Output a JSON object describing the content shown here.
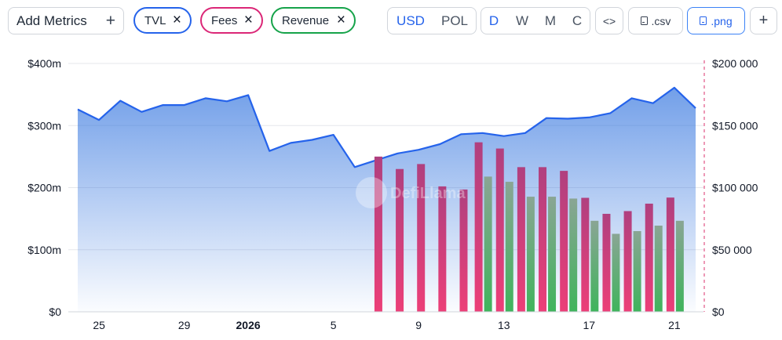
{
  "toolbar": {
    "add_metrics_label": "Add Metrics",
    "add_icon": "+",
    "chips": [
      {
        "label": "TVL",
        "color": "#2563eb"
      },
      {
        "label": "Fees",
        "color": "#db2777"
      },
      {
        "label": "Revenue",
        "color": "#16a34a"
      }
    ],
    "currency": [
      "USD",
      "POL"
    ],
    "currency_selected": "USD",
    "intervals": [
      "D",
      "W",
      "M",
      "C"
    ],
    "interval_selected": "D",
    "embed_icon": "<>",
    "csv_label": ".csv",
    "png_label": ".png",
    "plus_label": "+"
  },
  "watermark": "DefiLlama",
  "chart_data": {
    "type": "area+bar",
    "x_tick_labels": [
      "25",
      "29",
      "2026",
      "5",
      "9",
      "13",
      "17",
      "21"
    ],
    "days": [
      "Dec 24",
      "Dec 25",
      "Dec 26",
      "Dec 27",
      "Dec 28",
      "Dec 29",
      "Dec 30",
      "Dec 31",
      "Jan 1",
      "Jan 2",
      "Jan 3",
      "Jan 4",
      "Jan 5",
      "Jan 6",
      "Jan 7",
      "Jan 8",
      "Jan 9",
      "Jan 10",
      "Jan 11",
      "Jan 12",
      "Jan 13",
      "Jan 14",
      "Jan 15",
      "Jan 16",
      "Jan 17",
      "Jan 18",
      "Jan 19",
      "Jan 20",
      "Jan 21",
      "Jan 22"
    ],
    "left_axis": {
      "ticks": [
        "$0",
        "$100m",
        "$200m",
        "$300m",
        "$400m"
      ],
      "ylim": [
        0,
        400000000
      ]
    },
    "right_axis": {
      "ticks": [
        "$0",
        "$50 000",
        "$100 000",
        "$150 000",
        "$200 000"
      ],
      "ylim": [
        0,
        200000
      ]
    },
    "series": [
      {
        "name": "TVL",
        "axis": "left",
        "kind": "area",
        "color": "#2563eb",
        "values": [
          326000000,
          309000000,
          340000000,
          322000000,
          333000000,
          333000000,
          344000000,
          339000000,
          349000000,
          259000000,
          272000000,
          277000000,
          285000000,
          233000000,
          244000000,
          255000000,
          261000000,
          270000000,
          286000000,
          288000000,
          283000000,
          288000000,
          312000000,
          311000000,
          313000000,
          320000000,
          344000000,
          336000000,
          361000000,
          328000000
        ]
      },
      {
        "name": "Fees",
        "axis": "right",
        "kind": "bar",
        "color": "#db2777",
        "values": [
          null,
          null,
          null,
          null,
          null,
          null,
          null,
          null,
          null,
          null,
          null,
          null,
          null,
          null,
          125000,
          115000,
          119000,
          101000,
          98500,
          136500,
          131500,
          116500,
          116500,
          113500,
          91800,
          78900,
          81100,
          87100,
          92000,
          null
        ]
      },
      {
        "name": "Revenue",
        "axis": "right",
        "kind": "bar",
        "color": "#16a34a",
        "values": [
          null,
          null,
          null,
          null,
          null,
          null,
          null,
          null,
          null,
          null,
          null,
          null,
          null,
          null,
          null,
          null,
          null,
          null,
          null,
          108900,
          104700,
          92700,
          92700,
          91200,
          73300,
          62800,
          65000,
          69400,
          73300,
          null
        ]
      }
    ],
    "grid": true
  }
}
